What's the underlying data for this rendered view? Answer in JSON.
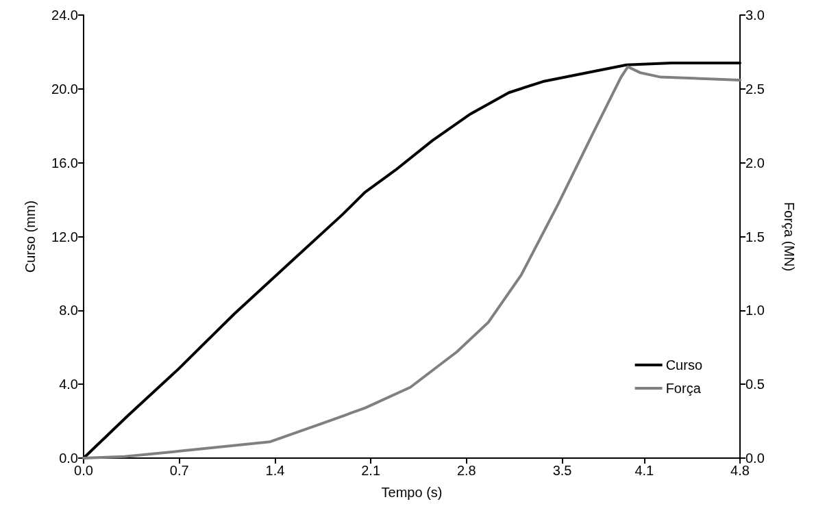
{
  "chart_data": {
    "type": "line",
    "xlabel": "Tempo (s)",
    "ylabel": "Curso (mm)",
    "y2label": "Força (MN)",
    "xlim": [
      0,
      4.8
    ],
    "xticks": [
      {
        "value": 0,
        "label": "0.0"
      },
      {
        "value": 0.7,
        "label": "0.7"
      },
      {
        "value": 1.4,
        "label": "1.4"
      },
      {
        "value": 2.1,
        "label": "2.1"
      },
      {
        "value": 2.8,
        "label": "2.8"
      },
      {
        "value": 3.5,
        "label": "3.5"
      },
      {
        "value": 4.1,
        "label": "4.1"
      },
      {
        "value": 4.8,
        "label": "4.8"
      }
    ],
    "ylim": [
      0,
      24
    ],
    "yticks": [
      {
        "value": 0,
        "label": "0.0"
      },
      {
        "value": 4,
        "label": "4.0"
      },
      {
        "value": 8,
        "label": "8.0"
      },
      {
        "value": 12,
        "label": "12.0"
      },
      {
        "value": 16,
        "label": "16.0"
      },
      {
        "value": 20,
        "label": "20.0"
      },
      {
        "value": 24,
        "label": "24.0"
      }
    ],
    "y2lim": [
      0,
      3
    ],
    "y2ticks": [
      {
        "value": 0,
        "label": "0.0"
      },
      {
        "value": 0.5,
        "label": "0.5"
      },
      {
        "value": 1,
        "label": "1.0"
      },
      {
        "value": 1.5,
        "label": "1.5"
      },
      {
        "value": 2,
        "label": "2.0"
      },
      {
        "value": 2.5,
        "label": "2.5"
      },
      {
        "value": 3,
        "label": "3.0"
      }
    ],
    "grid": false,
    "legend": "right",
    "marker": "none",
    "line_style": "solid",
    "series": [
      {
        "name": "Curso",
        "color": "#000000",
        "x": [
          0,
          0.324,
          0.69,
          1.1,
          1.526,
          1.894,
          2.057,
          2.28,
          2.55,
          2.82,
          3.11,
          3.36,
          3.63,
          3.97,
          4.3,
          4.8
        ],
        "values": [
          0,
          2.3,
          4.8,
          7.8,
          10.7,
          13.2,
          14.4,
          15.6,
          17.2,
          18.6,
          19.8,
          20.4,
          20.8,
          21.3,
          21.4,
          21.4
        ]
      },
      {
        "name": "Força",
        "color": "#808080",
        "axis": "y2",
        "x": [
          0,
          0.3,
          0.69,
          1.36,
          1.73,
          2.06,
          2.39,
          2.73,
          2.96,
          3.2,
          3.47,
          3.72,
          3.93,
          3.98,
          4.07,
          4.22,
          4.8
        ],
        "values": [
          0,
          0.01,
          0.046,
          0.11,
          0.23,
          0.34,
          0.48,
          0.72,
          0.92,
          1.24,
          1.72,
          2.19,
          2.58,
          2.65,
          2.61,
          2.58,
          2.56
        ]
      }
    ]
  }
}
